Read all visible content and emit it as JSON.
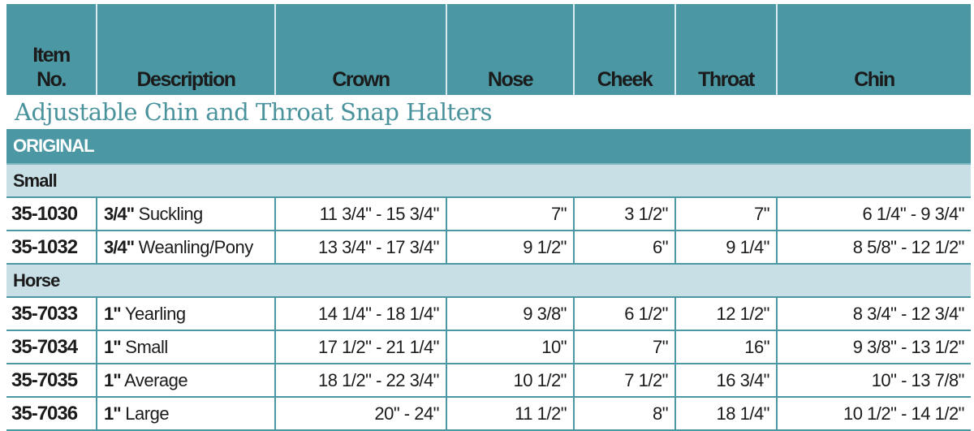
{
  "columns": [
    "Item No.",
    "Description",
    "Crown",
    "Nose",
    "Cheek",
    "Throat",
    "Chin"
  ],
  "title": "Adjustable Chin and Throat Snap Halters",
  "group": "ORIGINAL",
  "sections": [
    {
      "name": "Small",
      "rows": [
        {
          "item": "35-1030",
          "width": "3/4\"",
          "desc": "Suckling",
          "crown": "11 3/4\" - 15 3/4\"",
          "nose": "7\"",
          "cheek": "3 1/2\"",
          "throat": "7\"",
          "chin": "6 1/4\" - 9 3/4\""
        },
        {
          "item": "35-1032",
          "width": "3/4\"",
          "desc": "Weanling/Pony",
          "crown": "13 3/4\" - 17 3/4\"",
          "nose": "9 1/2\"",
          "cheek": "6\"",
          "throat": "9 1/4\"",
          "chin": "8  5/8\" - 12 1/2\""
        }
      ]
    },
    {
      "name": "Horse",
      "rows": [
        {
          "item": "35-7033",
          "width": "1\"",
          "desc": "Yearling",
          "crown": "14 1/4\" - 18 1/4\"",
          "nose": "9 3/8\"",
          "cheek": "6 1/2\"",
          "throat": "12 1/2\"",
          "chin": "8 3/4\" - 12 3/4\""
        },
        {
          "item": "35-7034",
          "width": "1\"",
          "desc": "Small",
          "crown": "17 1/2\" - 21 1/4\"",
          "nose": "10\"",
          "cheek": "7\"",
          "throat": "16\"",
          "chin": "9 3/8\" - 13 1/2\""
        },
        {
          "item": "35-7035",
          "width": "1\"",
          "desc": "Average",
          "crown": "18 1/2\" - 22 3/4\"",
          "nose": "10 1/2\"",
          "cheek": "7 1/2\"",
          "throat": "16 3/4\"",
          "chin": "10\" - 13 7/8\""
        },
        {
          "item": "35-7036",
          "width": "1\"",
          "desc": "Large",
          "crown": "20\" - 24\"",
          "nose": "11 1/2\"",
          "cheek": "8\"",
          "throat": "18 1/4\"",
          "chin": "10 1/2\" - 14 1/2\""
        }
      ]
    }
  ],
  "colors": {
    "header": "#4b98a4",
    "subheader": "#c8dfe5",
    "title": "#4a939d"
  }
}
